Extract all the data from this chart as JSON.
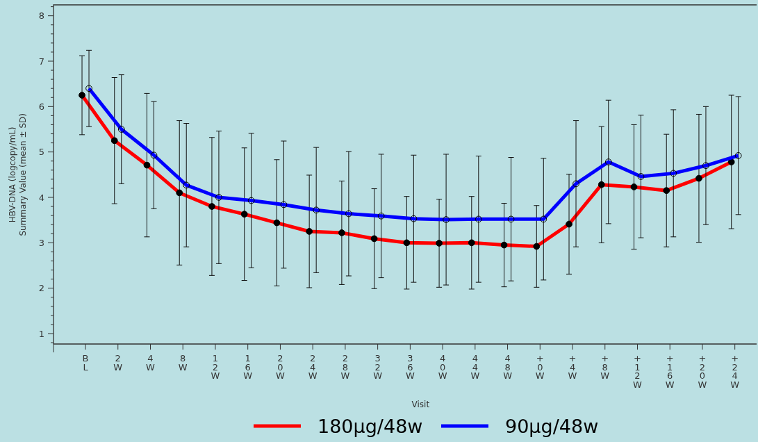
{
  "chart_data": {
    "type": "line",
    "xlabel": "Visit",
    "ylabel": "HBV-DNA (logcopy/mL)\nSummary Value (mean ± SD)",
    "categories": [
      "BL",
      "2W",
      "4W",
      "8W",
      "12W",
      "16W",
      "20W",
      "24W",
      "28W",
      "32W",
      "36W",
      "40W",
      "44W",
      "48W",
      "+0W",
      "+4W",
      "+8W",
      "+12W",
      "+16W",
      "+20W",
      "+24W"
    ],
    "series": [
      {
        "name": "180μg/48w",
        "color": "#ff0000",
        "values": [
          6.25,
          5.25,
          4.71,
          4.1,
          3.8,
          3.63,
          3.44,
          3.25,
          3.22,
          3.09,
          3.0,
          2.99,
          3.0,
          2.95,
          2.92,
          3.41,
          4.28,
          4.23,
          4.15,
          4.42,
          4.78
        ],
        "errors": [
          0.87,
          1.39,
          1.58,
          1.59,
          1.52,
          1.46,
          1.39,
          1.24,
          1.14,
          1.1,
          1.02,
          0.97,
          1.02,
          0.92,
          0.9,
          1.1,
          1.28,
          1.37,
          1.24,
          1.41,
          1.47
        ]
      },
      {
        "name": "90μg/48w",
        "color": "#0000ff",
        "values": [
          6.4,
          5.5,
          4.93,
          4.27,
          4.0,
          3.93,
          3.84,
          3.72,
          3.64,
          3.59,
          3.53,
          3.51,
          3.52,
          3.52,
          3.52,
          4.3,
          4.78,
          4.46,
          4.53,
          4.7,
          4.92
        ],
        "errors": [
          0.84,
          1.2,
          1.18,
          1.36,
          1.46,
          1.48,
          1.4,
          1.38,
          1.37,
          1.36,
          1.4,
          1.44,
          1.39,
          1.36,
          1.34,
          1.39,
          1.36,
          1.35,
          1.4,
          1.3,
          1.3
        ]
      }
    ],
    "ylim": [
      0.77,
      8.24
    ],
    "yticks": [
      {
        "value": 0.8,
        "label": null
      },
      1,
      {
        "value": 1.2,
        "label": null
      },
      {
        "value": 1.4,
        "label": null
      },
      {
        "value": 1.6,
        "label": null
      },
      {
        "value": 1.8,
        "label": null
      },
      2,
      {
        "value": 2.2,
        "label": null
      },
      {
        "value": 2.4,
        "label": null
      },
      {
        "value": 2.6,
        "label": null
      },
      {
        "value": 2.8,
        "label": null
      },
      3,
      {
        "value": 3.2,
        "label": null
      },
      {
        "value": 3.4,
        "label": null
      },
      {
        "value": 3.6,
        "label": null
      },
      {
        "value": 3.8,
        "label": null
      },
      4,
      {
        "value": 4.2,
        "label": null
      },
      {
        "value": 4.4,
        "label": null
      },
      {
        "value": 4.6,
        "label": null
      },
      {
        "value": 4.8,
        "label": null
      },
      5,
      {
        "value": 5.2,
        "label": null
      },
      {
        "value": 5.4,
        "label": null
      },
      {
        "value": 5.6,
        "label": null
      },
      {
        "value": 5.8,
        "label": null
      },
      6,
      {
        "value": 6.2,
        "label": null
      },
      {
        "value": 6.4,
        "label": null
      },
      {
        "value": 6.6,
        "label": null
      },
      {
        "value": 6.8,
        "label": null
      },
      7,
      {
        "value": 7.2,
        "label": null
      },
      {
        "value": 7.4,
        "label": null
      },
      {
        "value": 7.6,
        "label": null
      },
      {
        "value": 7.8,
        "label": null
      },
      8,
      {
        "value": 8.2,
        "label": null
      }
    ],
    "grid": false,
    "legend": "bottom",
    "marker": "circle",
    "line_style": "solid"
  }
}
